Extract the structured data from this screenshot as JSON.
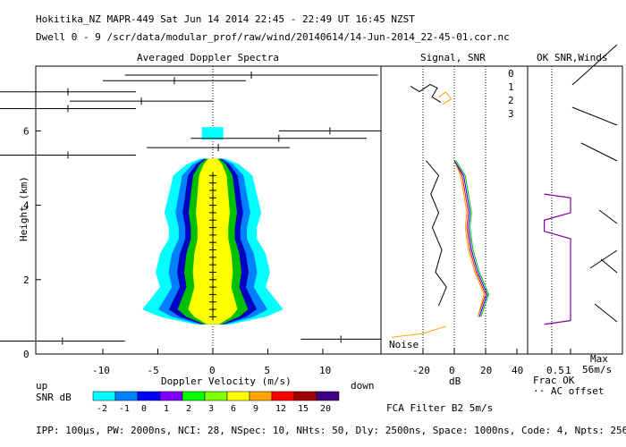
{
  "header": {
    "title_line": "Hokitika_NZ  MAPR-449  Sat Jun 14 2014 22:45 - 22:49 UT 16:45 NZST",
    "dwell_line": "Dwell  0 - 9  /scr/data/modular_prof/raw/wind/20140614/14-Jun-2014_22-45-01.cor.nc"
  },
  "footer": {
    "params_line": "IPP: 100μs, PW: 2000ns, NCI: 28, NSpec: 10, NHts: 50, Dly: 2500ns, Space: 1000ns, Code: 4, Npts: 256",
    "fca_filter": "FCA Filter B2  5m/s",
    "snr_label": "SNR dB",
    "up_label": "up",
    "down_label": "down"
  },
  "chart_data": [
    {
      "id": "spectra",
      "type": "heatmap",
      "title": "Averaged Doppler Spectra",
      "xlabel": "Doppler Velocity (m/s)",
      "ylabel": "Height (km)",
      "xlim": [
        -15,
        15
      ],
      "ylim": [
        0,
        7.6
      ],
      "xticks": [
        -10,
        -5,
        0,
        5,
        10
      ],
      "yticks": [
        0,
        2,
        4,
        6
      ],
      "spectrum_width_profile": [
        {
          "h": 0.8,
          "w": 0.8
        },
        {
          "h": 1.0,
          "w": 2.4
        },
        {
          "h": 1.2,
          "w": 3.2
        },
        {
          "h": 1.5,
          "w": 2.8
        },
        {
          "h": 1.8,
          "w": 2.4
        },
        {
          "h": 2.2,
          "w": 2.6
        },
        {
          "h": 2.7,
          "w": 2.4
        },
        {
          "h": 3.1,
          "w": 2.0
        },
        {
          "h": 3.4,
          "w": 2.0
        },
        {
          "h": 3.8,
          "w": 2.2
        },
        {
          "h": 4.3,
          "w": 2.0
        },
        {
          "h": 4.8,
          "w": 1.8
        },
        {
          "h": 5.1,
          "w": 1.2
        },
        {
          "h": 5.25,
          "w": 0.6
        }
      ],
      "echo_top_km": 6.1,
      "echo_bottom_km": 0.8,
      "error_bars": [
        {
          "h": 7.5,
          "x0": -8,
          "x1": 15
        },
        {
          "h": 7.35,
          "x0": -10,
          "x1": 3
        },
        {
          "h": 7.05,
          "x0": -20,
          "x1": -7
        },
        {
          "h": 6.8,
          "x0": -13,
          "x1": 0
        },
        {
          "h": 6.6,
          "x0": -20,
          "x1": -7
        },
        {
          "h": 6.0,
          "x0": 6,
          "x1": 20
        },
        {
          "h": 5.8,
          "x0": -2,
          "x1": 14
        },
        {
          "h": 5.55,
          "x0": -6,
          "x1": 7
        },
        {
          "h": 5.35,
          "x0": -20,
          "x1": -7
        },
        {
          "h": 0.4,
          "x0": 8,
          "x1": 20
        },
        {
          "h": 0.35,
          "x0": -20,
          "x1": -8
        }
      ]
    },
    {
      "id": "snr",
      "type": "line",
      "title": "Signal, SNR",
      "xlabel": "dB",
      "xlim": [
        -40,
        40
      ],
      "xticks": [
        -20,
        0,
        20,
        40
      ],
      "noise_label": "Noise",
      "series": [
        {
          "name": "noise",
          "color": "#000000",
          "profile": [
            [
              -10,
              1.3
            ],
            [
              -5,
              1.8
            ],
            [
              -12,
              2.2
            ],
            [
              -8,
              2.8
            ],
            [
              -14,
              3.4
            ],
            [
              -10,
              3.8
            ],
            [
              -15,
              4.3
            ],
            [
              -10,
              4.8
            ],
            [
              -18,
              5.2
            ]
          ]
        },
        {
          "name": "0",
          "color": "#ff0000",
          "profile": [
            [
              15,
              1.0
            ],
            [
              20,
              1.6
            ],
            [
              14,
              2.2
            ],
            [
              10,
              2.8
            ],
            [
              8,
              3.4
            ],
            [
              9,
              3.8
            ],
            [
              7,
              4.3
            ],
            [
              5,
              4.8
            ],
            [
              0,
              5.2
            ]
          ]
        },
        {
          "name": "1",
          "color": "#ffa500",
          "profile": [
            [
              15,
              1.0
            ],
            [
              19,
              1.6
            ],
            [
              13,
              2.2
            ],
            [
              9,
              2.8
            ],
            [
              7,
              3.4
            ],
            [
              8,
              3.8
            ],
            [
              6,
              4.3
            ],
            [
              4,
              4.8
            ],
            [
              0,
              5.2
            ]
          ]
        },
        {
          "name": "2",
          "color": "#00c000",
          "profile": [
            [
              17,
              1.0
            ],
            [
              22,
              1.6
            ],
            [
              16,
              2.2
            ],
            [
              12,
              2.8
            ],
            [
              10,
              3.4
            ],
            [
              11,
              3.8
            ],
            [
              9,
              4.3
            ],
            [
              7,
              4.8
            ],
            [
              1,
              5.2
            ]
          ]
        },
        {
          "name": "3",
          "color": "#0000ff",
          "profile": [
            [
              16,
              1.0
            ],
            [
              21,
              1.6
            ],
            [
              15,
              2.2
            ],
            [
              11,
              2.8
            ],
            [
              9,
              3.4
            ],
            [
              10,
              3.8
            ],
            [
              8,
              4.3
            ],
            [
              6,
              4.8
            ],
            [
              0,
              5.2
            ]
          ]
        }
      ]
    },
    {
      "id": "winds",
      "type": "scatter",
      "title": "OK SNR,Winds",
      "xlim": [
        0,
        1
      ],
      "xticks": [
        0.5,
        1
      ],
      "xticklabels": [
        "0.5",
        "1"
      ],
      "frac_ok_label": "Frac OK",
      "ac_offset_label": "·· AC offset",
      "max_label": "Max",
      "max_value_label": "56m/s",
      "frac_ok_profile": [
        [
          0.3,
          0.8
        ],
        [
          1.0,
          0.9
        ],
        [
          1.0,
          3.1
        ],
        [
          0.3,
          3.3
        ],
        [
          0.3,
          3.6
        ],
        [
          1.0,
          3.8
        ],
        [
          1.0,
          4.2
        ],
        [
          0.3,
          4.3
        ]
      ]
    }
  ],
  "legend": {
    "channels": [
      {
        "label": "0",
        "color": "#ff0000"
      },
      {
        "label": "1",
        "color": "#ffa500"
      },
      {
        "label": "2",
        "color": "#00c000"
      },
      {
        "label": "3",
        "color": "#0000ff"
      }
    ]
  },
  "colorbar": {
    "labels": [
      "-2",
      "-1",
      "0",
      "1",
      "2",
      "3",
      "6",
      "9",
      "12",
      "15",
      "20"
    ],
    "colors": [
      "#00ffff",
      "#0080ff",
      "#0000ff",
      "#8000ff",
      "#00ff00",
      "#80ff00",
      "#ffff00",
      "#ffa500",
      "#ff0000",
      "#a00000",
      "#400080"
    ]
  }
}
